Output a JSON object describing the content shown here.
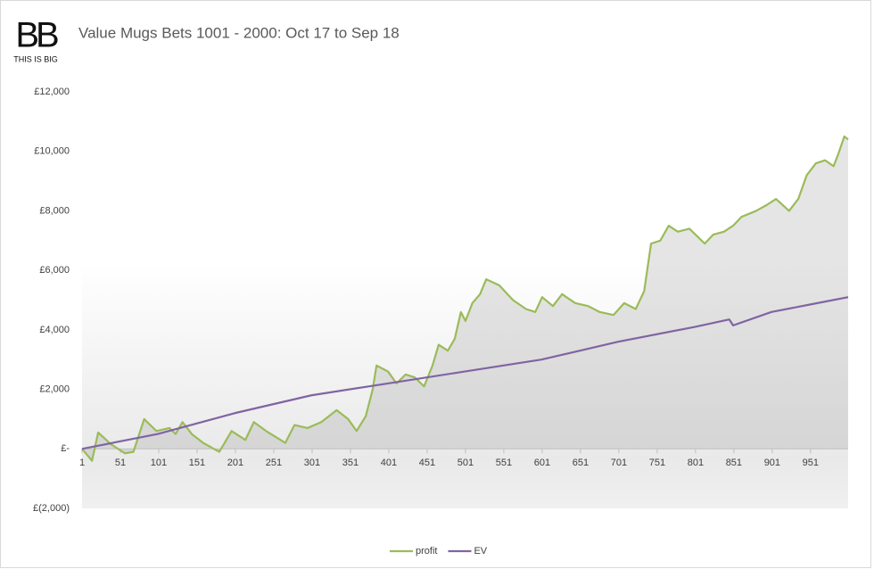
{
  "logo": {
    "mark": "BB",
    "caption": "THIS IS BIG"
  },
  "chart_data": {
    "type": "line",
    "title": "Value Mugs Bets 1001 - 2000: Oct 17 to Sep 18",
    "xlim": [
      1,
      1000
    ],
    "xticks": [
      1,
      51,
      101,
      151,
      201,
      251,
      301,
      351,
      401,
      451,
      501,
      551,
      601,
      651,
      701,
      751,
      801,
      851,
      901,
      951
    ],
    "ylim": [
      -2000,
      12000
    ],
    "yticks": [
      {
        "value": -2000,
        "label": "£(2,000)"
      },
      {
        "value": 0,
        "label": "£-"
      },
      {
        "value": 2000,
        "label": "£2,000"
      },
      {
        "value": 4000,
        "label": "£4,000"
      },
      {
        "value": 6000,
        "label": "£6,000"
      },
      {
        "value": 8000,
        "label": "£8,000"
      },
      {
        "value": 10000,
        "label": "£10,000"
      },
      {
        "value": 12000,
        "label": "£12,000"
      }
    ],
    "legend": "bottom",
    "series": [
      {
        "name": "profit",
        "color": "#9bbb59",
        "x": [
          1,
          14,
          22,
          39,
          57,
          68,
          82,
          98,
          115,
          123,
          132,
          144,
          159,
          173,
          180,
          196,
          214,
          225,
          241,
          266,
          278,
          295,
          313,
          333,
          348,
          359,
          371,
          380,
          385,
          400,
          411,
          423,
          435,
          447,
          458,
          466,
          478,
          487,
          495,
          501,
          510,
          520,
          528,
          545,
          563,
          580,
          592,
          601,
          615,
          627,
          644,
          661,
          676,
          694,
          708,
          723,
          734,
          743,
          755,
          766,
          778,
          793,
          813,
          824,
          838,
          850,
          861,
          880,
          894,
          906,
          923,
          935,
          946,
          958,
          970,
          981,
          987,
          995,
          1000
        ],
        "values": [
          0,
          -400,
          550,
          150,
          -150,
          -100,
          1000,
          600,
          700,
          500,
          900,
          500,
          200,
          0,
          -100,
          600,
          300,
          900,
          600,
          200,
          800,
          700,
          900,
          1300,
          1000,
          600,
          1100,
          2000,
          2800,
          2600,
          2200,
          2500,
          2400,
          2100,
          2800,
          3500,
          3300,
          3700,
          4600,
          4300,
          4900,
          5200,
          5700,
          5500,
          5000,
          4700,
          4600,
          5100,
          4800,
          5200,
          4900,
          4800,
          4600,
          4500,
          4900,
          4700,
          5300,
          6900,
          7000,
          7500,
          7300,
          7400,
          6900,
          7200,
          7300,
          7500,
          7800,
          8000,
          8200,
          8400,
          8000,
          8400,
          9200,
          9600,
          9700,
          9500,
          9900,
          10500,
          10400
        ]
      },
      {
        "name": "EV",
        "color": "#8064a2",
        "x": [
          1,
          100,
          200,
          300,
          400,
          500,
          600,
          700,
          800,
          845,
          850,
          900,
          950,
          1000
        ],
        "values": [
          0,
          500,
          1200,
          1800,
          2200,
          2600,
          3000,
          3600,
          4100,
          4350,
          4150,
          4600,
          4850,
          5100
        ]
      }
    ]
  }
}
